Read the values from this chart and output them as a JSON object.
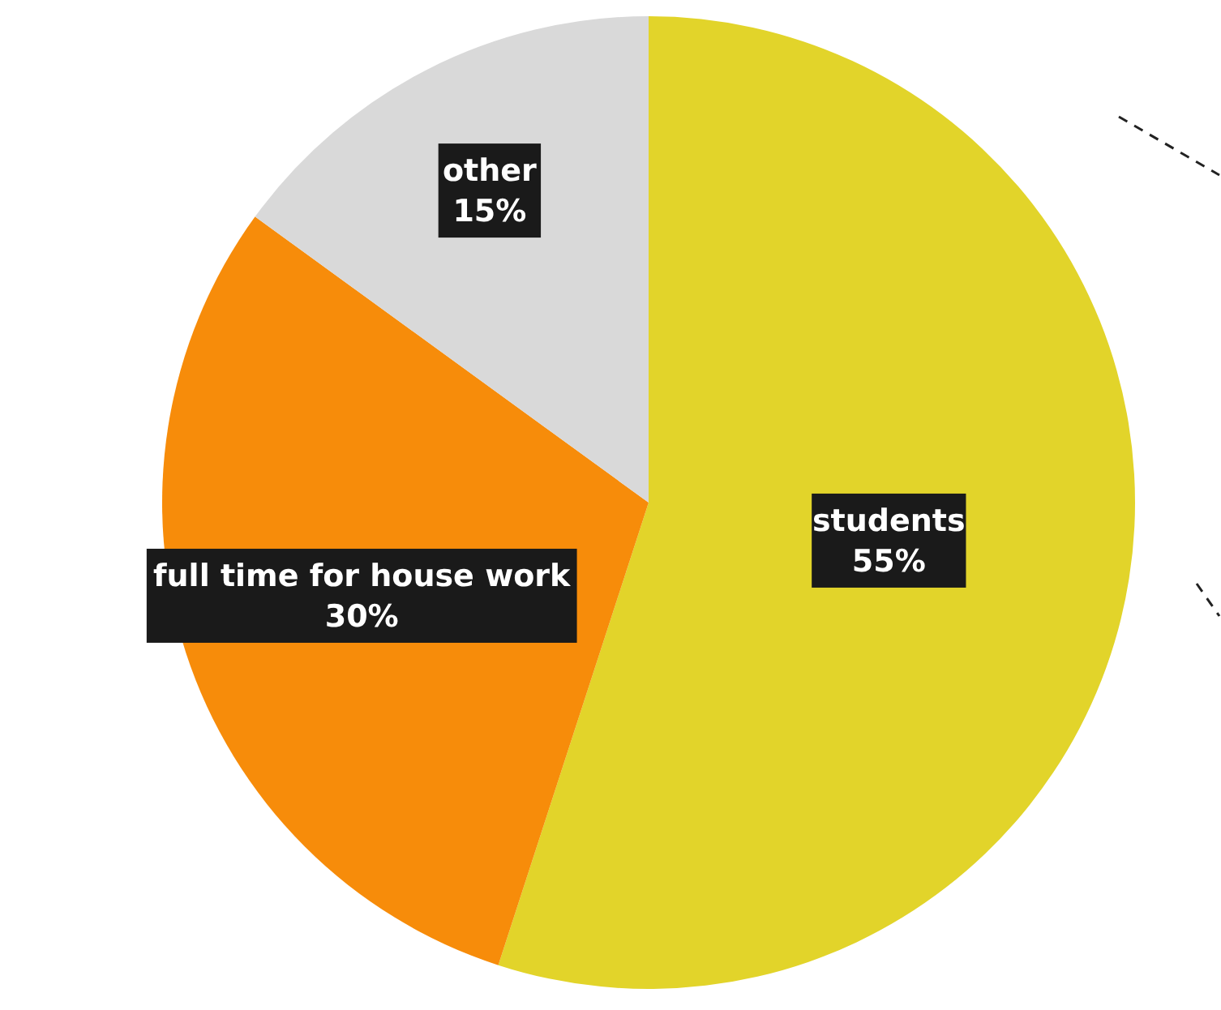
{
  "chart_data": {
    "type": "pie",
    "categories": [
      "students",
      "full time for house work",
      "other"
    ],
    "values": [
      55,
      30,
      15
    ],
    "colors": [
      "#e2d42a",
      "#f78c0a",
      "#d9d9d9"
    ],
    "value_labels": [
      "55%",
      "30%",
      "15%"
    ]
  }
}
